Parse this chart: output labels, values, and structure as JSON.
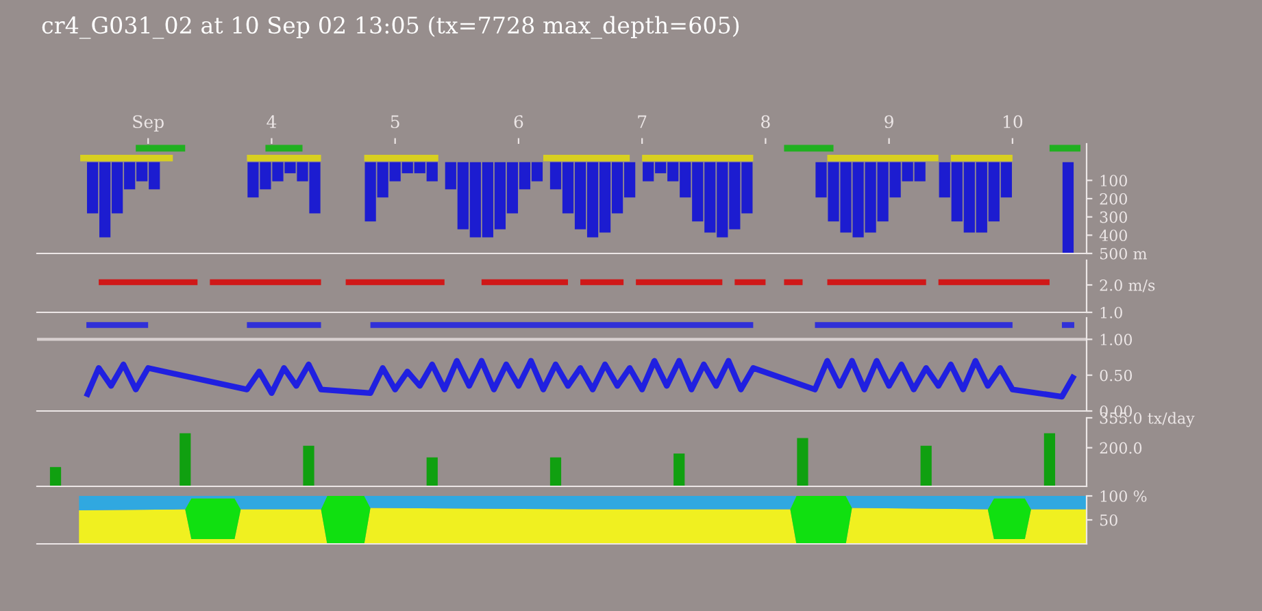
{
  "chart_data": [
    {
      "type": "bar",
      "title": "cr4_G031_02 at 10 Sep 02 13:05 (tx=7728 max_depth=605)",
      "x": [
        2.55,
        2.65,
        2.75,
        2.85,
        2.95,
        3.05,
        3.85,
        3.95,
        4.05,
        4.15,
        4.25,
        4.35,
        4.8,
        4.9,
        5.0,
        5.1,
        5.2,
        5.3,
        5.45,
        5.55,
        5.65,
        5.75,
        5.85,
        5.95,
        6.05,
        6.15,
        6.3,
        6.4,
        6.5,
        6.6,
        6.7,
        6.8,
        6.9,
        7.05,
        7.15,
        7.25,
        7.35,
        7.45,
        7.55,
        7.65,
        7.75,
        7.85,
        8.45,
        8.55,
        8.65,
        8.75,
        8.85,
        8.95,
        9.05,
        9.15,
        9.25,
        9.45,
        9.55,
        9.65,
        9.75,
        9.85,
        9.95,
        10.45
      ],
      "series": [
        {
          "color": "#1c1cd0",
          "values": [
            281,
            412,
            281,
            149,
            105,
            149,
            193,
            149,
            105,
            61,
            105,
            281,
            325,
            193,
            105,
            61,
            61,
            105,
            149,
            368,
            412,
            412,
            368,
            281,
            149,
            105,
            149,
            281,
            368,
            412,
            386,
            281,
            193,
            105,
            61,
            105,
            193,
            325,
            386,
            412,
            368,
            281,
            193,
            325,
            386,
            412,
            386,
            325,
            193,
            105,
            105,
            193,
            325,
            386,
            386,
            325,
            193,
            500
          ]
        }
      ],
      "xlim": [
        2.1,
        10.6
      ],
      "xticks": [
        {
          "value": 3,
          "label": "Sep"
        },
        4,
        5,
        6,
        7,
        8,
        9,
        10
      ],
      "ylim": [
        500,
        -100
      ],
      "yticks": [
        100,
        200,
        300,
        400,
        {
          "value": 500,
          "label": "500 m"
        }
      ],
      "bands": [
        {
          "axis": "x",
          "from": 2.9,
          "to": 3.3,
          "color": "#20b020"
        },
        {
          "axis": "x",
          "from": 3.95,
          "to": 4.25,
          "color": "#20b020"
        },
        {
          "axis": "x",
          "from": 8.15,
          "to": 8.55,
          "color": "#20b020"
        },
        {
          "axis": "x",
          "from": 10.3,
          "to": 10.55,
          "color": "#20b020"
        },
        {
          "axis": "x",
          "from": 2.45,
          "to": 3.2,
          "color": "#d8d020"
        },
        {
          "axis": "x",
          "from": 3.8,
          "to": 4.4,
          "color": "#d8d020"
        },
        {
          "axis": "x",
          "from": 4.75,
          "to": 5.35,
          "color": "#d8d020"
        },
        {
          "axis": "x",
          "from": 6.2,
          "to": 6.9,
          "color": "#d8d020"
        },
        {
          "axis": "x",
          "from": 7.0,
          "to": 7.9,
          "color": "#d8d020"
        },
        {
          "axis": "x",
          "from": 8.5,
          "to": 9.4,
          "color": "#d8d020"
        },
        {
          "axis": "x",
          "from": 9.5,
          "to": 10.0,
          "color": "#d8d020"
        }
      ]
    },
    {
      "type": "line",
      "x": [
        2.6,
        3.4,
        null,
        3.5,
        4.4,
        null,
        4.6,
        5.4,
        null,
        5.7,
        6.4,
        null,
        6.5,
        6.85,
        null,
        6.95,
        7.65,
        null,
        7.75,
        8.0,
        null,
        8.15,
        8.3,
        null,
        8.5,
        9.3,
        null,
        9.4,
        10.3
      ],
      "series": [
        {
          "color": "#d01818",
          "values": [
            2.1,
            2.1,
            null,
            2.1,
            2.1,
            null,
            2.1,
            2.1,
            null,
            2.1,
            2.1,
            null,
            2.1,
            2.1,
            null,
            2.1,
            2.1,
            null,
            2.1,
            2.1,
            null,
            2.1,
            2.1,
            null,
            2.1,
            2.1,
            null,
            2.1,
            2.1
          ]
        }
      ],
      "xlim": [
        2.1,
        10.6
      ],
      "ylim": [
        1.0,
        2.9
      ],
      "yticks": [
        {
          "value": 1.0,
          "label": "1.0"
        },
        {
          "value": 2.0,
          "label": "2.0 m/s"
        }
      ],
      "tick_labels": "y"
    },
    {
      "type": "line",
      "x": [
        2.5,
        2.6,
        2.7,
        2.8,
        2.9,
        3.0,
        3.8,
        3.9,
        4.0,
        4.1,
        4.2,
        4.3,
        4.4,
        4.8,
        4.9,
        5.0,
        5.1,
        5.2,
        5.3,
        5.4,
        5.5,
        5.6,
        5.7,
        5.8,
        5.9,
        6.0,
        6.1,
        6.2,
        6.3,
        6.4,
        6.5,
        6.6,
        6.7,
        6.8,
        6.9,
        7.0,
        7.1,
        7.2,
        7.3,
        7.4,
        7.5,
        7.6,
        7.7,
        7.8,
        7.9,
        8.4,
        8.5,
        8.6,
        8.7,
        8.8,
        8.9,
        9.0,
        9.1,
        9.2,
        9.3,
        9.4,
        9.5,
        9.6,
        9.7,
        9.8,
        9.9,
        10.0,
        10.4,
        10.5
      ],
      "series": [
        {
          "color": "#2020e0",
          "values": [
            0.2,
            0.6,
            0.35,
            0.65,
            0.3,
            0.6,
            0.3,
            0.55,
            0.25,
            0.6,
            0.35,
            0.65,
            0.3,
            0.25,
            0.6,
            0.3,
            0.55,
            0.35,
            0.65,
            0.3,
            0.7,
            0.35,
            0.7,
            0.3,
            0.65,
            0.35,
            0.7,
            0.3,
            0.65,
            0.35,
            0.6,
            0.3,
            0.65,
            0.35,
            0.6,
            0.3,
            0.7,
            0.35,
            0.7,
            0.3,
            0.65,
            0.35,
            0.7,
            0.3,
            0.6,
            0.3,
            0.7,
            0.35,
            0.7,
            0.3,
            0.7,
            0.35,
            0.65,
            0.3,
            0.6,
            0.35,
            0.65,
            0.3,
            0.7,
            0.35,
            0.6,
            0.3,
            0.2,
            0.5
          ]
        },
        {
          "color": "#3030d8",
          "x": [
            2.5,
            3.0,
            null,
            3.8,
            4.4,
            null,
            4.8,
            7.9,
            null,
            8.4,
            10.0,
            null,
            10.4,
            10.5
          ],
          "values": [
            1.2,
            1.2,
            null,
            1.2,
            1.2,
            null,
            1.2,
            1.2,
            null,
            1.2,
            1.2,
            null,
            1.2,
            1.2
          ]
        }
      ],
      "ref_lines": [
        {
          "axis": "y",
          "value": 1.0,
          "color": "#d8d0d0"
        }
      ],
      "xlim": [
        2.1,
        10.6
      ],
      "ylim": [
        0,
        1.3
      ],
      "yticks": [
        {
          "value": 0,
          "label": "0.00"
        },
        {
          "value": 0.5,
          "label": "0.50"
        },
        {
          "value": 1.0,
          "label": "1.00"
        }
      ],
      "tick_labels": "y"
    },
    {
      "type": "bar",
      "x": [
        2.25,
        3.3,
        4.3,
        5.3,
        6.3,
        7.3,
        8.3,
        9.3,
        10.3
      ],
      "series": [
        {
          "color": "#10a010",
          "values": [
            100,
            275,
            210,
            150,
            150,
            170,
            250,
            210,
            275
          ]
        }
      ],
      "xlim": [
        2.1,
        10.6
      ],
      "ylim": [
        0,
        355
      ],
      "yticks": [
        {
          "value": 200,
          "label": "200.0"
        },
        {
          "value": 355,
          "label": "355.0 tx/day"
        }
      ],
      "tick_labels": "y"
    },
    {
      "type": "area",
      "stacked": true,
      "x": [
        2.44,
        3.3,
        3.35,
        3.7,
        3.75,
        4.4,
        4.45,
        4.75,
        4.8,
        6.5,
        8.2,
        8.25,
        8.65,
        8.7,
        9.8,
        9.85,
        10.1,
        10.15,
        10.6
      ],
      "series": [
        {
          "color": "#f0f020",
          "values": [
            70,
            72,
            10,
            10,
            72,
            72,
            0,
            0,
            75,
            72,
            72,
            0,
            0,
            75,
            72,
            10,
            10,
            72,
            72
          ]
        },
        {
          "color": "#10e010",
          "values": [
            0,
            0,
            85,
            85,
            0,
            0,
            100,
            100,
            0,
            0,
            0,
            100,
            100,
            0,
            0,
            85,
            85,
            0,
            0
          ]
        },
        {
          "color": "#30a8e0",
          "values": [
            30,
            28,
            5,
            5,
            28,
            28,
            0,
            0,
            25,
            28,
            28,
            0,
            0,
            25,
            28,
            5,
            5,
            28,
            28
          ]
        }
      ],
      "xlim": [
        2.1,
        10.6
      ],
      "ylim": [
        0,
        100
      ],
      "yticks": [
        50,
        {
          "value": 100,
          "label": "100 %"
        }
      ],
      "tick_labels": "y"
    }
  ]
}
